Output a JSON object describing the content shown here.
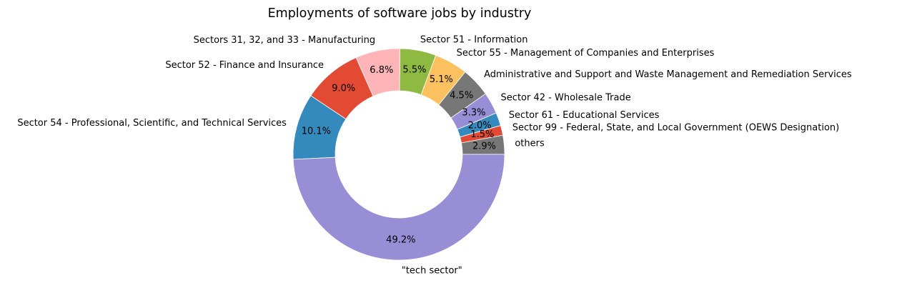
{
  "chart_data": {
    "type": "pie",
    "donut": true,
    "title": "Employments of software jobs by industry",
    "start_angle_deg": 0,
    "direction": "counterclockwise",
    "slices": [
      {
        "label": "others",
        "value": 2.9,
        "pct_label": "2.9%",
        "color": "#777777"
      },
      {
        "label": "Sector 99 - Federal, State, and Local Government (OEWS Designation)",
        "value": 1.5,
        "pct_label": "1.5%",
        "color": "#E24A33"
      },
      {
        "label": "Sector 61 - Educational Services",
        "value": 2.0,
        "pct_label": "2.0%",
        "color": "#348ABD"
      },
      {
        "label": "Sector 42 - Wholesale Trade",
        "value": 3.3,
        "pct_label": "3.3%",
        "color": "#988ED5"
      },
      {
        "label": "Administrative and Support and Waste Management and Remediation Services",
        "value": 4.5,
        "pct_label": "4.5%",
        "color": "#777777"
      },
      {
        "label": "Sector 55 - Management of Companies and Enterprises",
        "value": 5.1,
        "pct_label": "5.1%",
        "color": "#FBC15E"
      },
      {
        "label": "Sector 51 - Information",
        "value": 5.5,
        "pct_label": "5.5%",
        "color": "#8EBA42"
      },
      {
        "label": "Sectors 31, 32, and 33 - Manufacturing",
        "value": 6.8,
        "pct_label": "6.8%",
        "color": "#FFB5B8"
      },
      {
        "label": "Sector 52 - Finance and Insurance",
        "value": 9.0,
        "pct_label": "9.0%",
        "color": "#E24A33"
      },
      {
        "label": "Sector 54 - Professional, Scientific, and Technical Services",
        "value": 10.1,
        "pct_label": "10.1%",
        "color": "#348ABD"
      },
      {
        "label": "\"tech sector\"",
        "value": 49.2,
        "pct_label": "49.2%",
        "color": "#988ED5"
      }
    ]
  }
}
